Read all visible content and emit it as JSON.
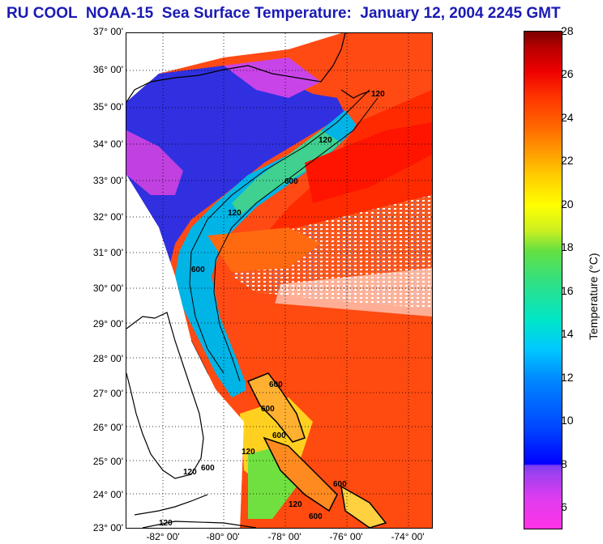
{
  "title": "RU COOL  NOAA-15  Sea Surface Temperature:  January 12, 2004 2245 GMT",
  "map": {
    "lat_labels": [
      "37° 00'",
      "36° 00'",
      "35° 00'",
      "34° 00'",
      "33° 00'",
      "32° 00'",
      "31° 00'",
      "30° 00'",
      "29° 00'",
      "28° 00'",
      "27° 00'",
      "26° 00'",
      "25° 00'",
      "24° 00'",
      "23° 00'"
    ],
    "lon_labels": [
      "-82° 00'",
      "-80° 00'",
      "-78° 00'",
      "-76° 00'",
      "-74° 00'"
    ],
    "contour_labels": [
      "120",
      "120",
      "600",
      "120",
      "600",
      "600",
      "600",
      "600",
      "120",
      "120",
      "600",
      "120",
      "600",
      "120",
      "600"
    ],
    "colors": {
      "warm": "#ff3300",
      "cool": "#0033ff",
      "land": "#ffffff",
      "cloud": "#ffffff"
    }
  },
  "colorbar": {
    "label": "Temperature (°C)",
    "ticks": [
      "28",
      "26",
      "24",
      "22",
      "20",
      "18",
      "16",
      "14",
      "12",
      "10",
      "8",
      "6"
    ],
    "min": 5,
    "max": 28
  }
}
